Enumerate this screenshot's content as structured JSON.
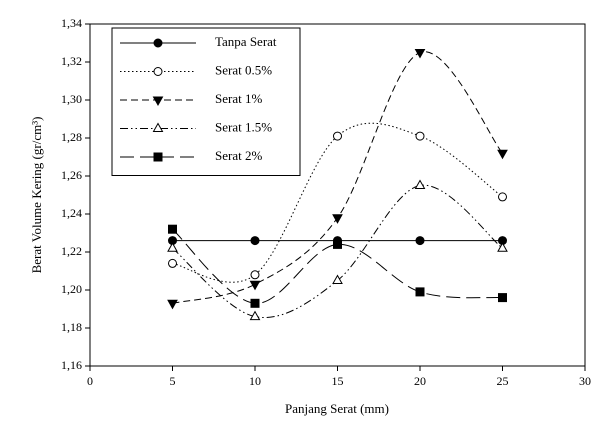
{
  "chart_data": {
    "type": "line",
    "x_label": "Panjang Serat (mm)",
    "y_label": "Berat Volume Kering (gr/cm³)",
    "x": [
      5,
      10,
      15,
      20,
      25
    ],
    "xlim": [
      0,
      30
    ],
    "xticks": [
      0,
      5,
      10,
      15,
      20,
      25,
      30
    ],
    "ylim": [
      1.16,
      1.34
    ],
    "yticks": [
      {
        "value": 1.16,
        "label": "1,16"
      },
      {
        "value": 1.18,
        "label": "1,18"
      },
      {
        "value": 1.2,
        "label": "1,20"
      },
      {
        "value": 1.22,
        "label": "1,22"
      },
      {
        "value": 1.24,
        "label": "1,24"
      },
      {
        "value": 1.26,
        "label": "1,26"
      },
      {
        "value": 1.28,
        "label": "1,28"
      },
      {
        "value": 1.3,
        "label": "1,30"
      },
      {
        "value": 1.32,
        "label": "1,32"
      },
      {
        "value": 1.34,
        "label": "1,34"
      }
    ],
    "grid": false,
    "legend": "upper left",
    "series": [
      {
        "name": "Tanpa Serat",
        "color": "#000000",
        "dash": "solid",
        "marker": "circle",
        "filled": true,
        "smooth": false,
        "values": [
          1.226,
          1.226,
          1.226,
          1.226,
          1.226
        ]
      },
      {
        "name": "Serat 0.5%",
        "color": "#000000",
        "dash": "dotted",
        "marker": "circle",
        "filled": false,
        "smooth": true,
        "values": [
          1.214,
          1.208,
          1.281,
          1.281,
          1.249
        ]
      },
      {
        "name": "Serat 1%",
        "color": "#000000",
        "dash": "dashed",
        "marker": "triangle-down",
        "filled": true,
        "smooth": true,
        "values": [
          1.193,
          1.203,
          1.238,
          1.325,
          1.272
        ]
      },
      {
        "name": "Serat 1.5%",
        "color": "#000000",
        "dash": "dashdotdot",
        "marker": "triangle-up",
        "filled": false,
        "smooth": true,
        "values": [
          1.222,
          1.186,
          1.205,
          1.255,
          1.222
        ]
      },
      {
        "name": "Serat 2%",
        "color": "#000000",
        "dash": "longdash",
        "marker": "square",
        "filled": true,
        "smooth": true,
        "values": [
          1.232,
          1.193,
          1.224,
          1.199,
          1.196
        ]
      }
    ]
  }
}
